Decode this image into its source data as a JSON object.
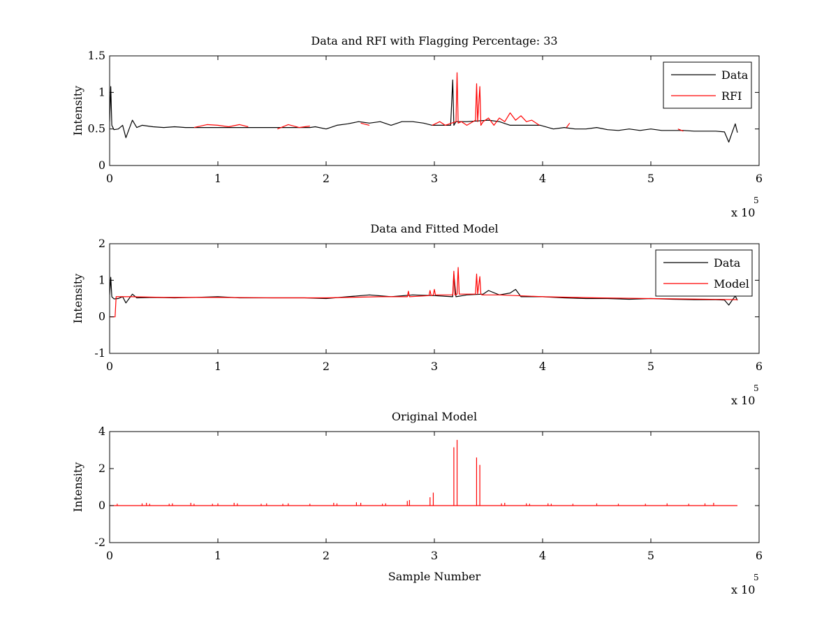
{
  "chart_data": [
    {
      "type": "line",
      "title": "Data and RFI with Flagging Percentage: 33",
      "xlabel": "",
      "ylabel": "Intensity",
      "xlim": [
        0,
        6
      ],
      "ylim": [
        0,
        1.5
      ],
      "xticks": [
        0,
        1,
        2,
        3,
        4,
        5,
        6
      ],
      "yticks": [
        0,
        0.5,
        1,
        1.5
      ],
      "x_multiplier": {
        "base": "x 10",
        "exponent": "5"
      },
      "legend": {
        "placement": "top-right",
        "entries": [
          {
            "label": "Data",
            "color": "#000000"
          },
          {
            "label": "RFI",
            "color": "#ff0000"
          }
        ]
      },
      "series": [
        {
          "name": "Data",
          "color": "#000000",
          "x": [
            0,
            0.01,
            0.02,
            0.04,
            0.08,
            0.12,
            0.15,
            0.18,
            0.21,
            0.25,
            0.3,
            0.4,
            0.5,
            0.6,
            0.7,
            0.75,
            1.3,
            1.5,
            1.85,
            1.9,
            2.0,
            2.1,
            2.2,
            2.3,
            2.4,
            2.5,
            2.6,
            2.7,
            2.8,
            2.9,
            2.98,
            3.15,
            3.17,
            3.18,
            3.2,
            3.3,
            3.5,
            3.6,
            3.7,
            3.98,
            4.1,
            4.2,
            4.3,
            4.4,
            4.5,
            4.6,
            4.7,
            4.8,
            4.9,
            5.0,
            5.1,
            5.2,
            5.3,
            5.4,
            5.5,
            5.6,
            5.68,
            5.72,
            5.75,
            5.78,
            5.8
          ],
          "y": [
            0.6,
            1.08,
            0.55,
            0.49,
            0.5,
            0.55,
            0.38,
            0.5,
            0.62,
            0.52,
            0.55,
            0.53,
            0.52,
            0.53,
            0.52,
            0.52,
            0.52,
            0.52,
            0.52,
            0.53,
            0.5,
            0.55,
            0.57,
            0.6,
            0.58,
            0.6,
            0.55,
            0.6,
            0.6,
            0.58,
            0.55,
            0.55,
            1.17,
            0.55,
            0.6,
            0.6,
            0.62,
            0.6,
            0.55,
            0.55,
            0.5,
            0.52,
            0.5,
            0.5,
            0.52,
            0.49,
            0.48,
            0.5,
            0.48,
            0.5,
            0.48,
            0.48,
            0.48,
            0.47,
            0.47,
            0.47,
            0.46,
            0.32,
            0.45,
            0.57,
            0.45
          ]
        },
        {
          "name": "RFI",
          "color": "#ff0000",
          "segments": [
            {
              "x": [
                0.78,
                0.9,
                1.0,
                1.1,
                1.2,
                1.28
              ],
              "y": [
                0.52,
                0.56,
                0.55,
                0.53,
                0.56,
                0.53
              ]
            },
            {
              "x": [
                1.55,
                1.65,
                1.75,
                1.85
              ],
              "y": [
                0.5,
                0.56,
                0.52,
                0.54
              ]
            },
            {
              "x": [
                2.32,
                2.4
              ],
              "y": [
                0.58,
                0.55
              ]
            },
            {
              "x": [
                2.98,
                3.05,
                3.1,
                3.2,
                3.21,
                3.22,
                3.25,
                3.3,
                3.38,
                3.39,
                3.4,
                3.42,
                3.43,
                3.45,
                3.5,
                3.55,
                3.6,
                3.65,
                3.7,
                3.75,
                3.8,
                3.85,
                3.9,
                3.97
              ],
              "y": [
                0.55,
                0.6,
                0.55,
                0.6,
                1.27,
                0.58,
                0.6,
                0.55,
                0.62,
                1.12,
                0.6,
                1.08,
                0.55,
                0.6,
                0.65,
                0.55,
                0.65,
                0.6,
                0.72,
                0.62,
                0.68,
                0.6,
                0.62,
                0.55
              ]
            },
            {
              "x": [
                4.22,
                4.25
              ],
              "y": [
                0.52,
                0.58
              ]
            },
            {
              "x": [
                5.25,
                5.3
              ],
              "y": [
                0.5,
                0.47
              ]
            }
          ]
        }
      ]
    },
    {
      "type": "line",
      "title": "Data and Fitted Model",
      "xlabel": "",
      "ylabel": "Intensity",
      "xlim": [
        0,
        6
      ],
      "ylim": [
        -1,
        2
      ],
      "xticks": [
        0,
        1,
        2,
        3,
        4,
        5,
        6
      ],
      "yticks": [
        -1,
        0,
        1,
        2
      ],
      "x_multiplier": {
        "base": "x 10",
        "exponent": "5"
      },
      "legend": {
        "placement": "top-right",
        "entries": [
          {
            "label": "Data",
            "color": "#000000"
          },
          {
            "label": "Model",
            "color": "#ff0000"
          }
        ]
      },
      "series": [
        {
          "name": "Data",
          "color": "#000000",
          "x": [
            0,
            0.01,
            0.02,
            0.04,
            0.08,
            0.12,
            0.15,
            0.18,
            0.21,
            0.25,
            0.4,
            0.6,
            0.8,
            1.0,
            1.2,
            1.4,
            1.6,
            1.8,
            2.0,
            2.2,
            2.4,
            2.6,
            2.8,
            3.0,
            3.17,
            3.18,
            3.2,
            3.3,
            3.45,
            3.5,
            3.6,
            3.7,
            3.75,
            3.8,
            4.0,
            4.2,
            4.4,
            4.6,
            4.8,
            5.0,
            5.2,
            5.4,
            5.6,
            5.68,
            5.72,
            5.75,
            5.78,
            5.8
          ],
          "y": [
            0.6,
            1.08,
            0.55,
            0.49,
            0.5,
            0.55,
            0.38,
            0.5,
            0.62,
            0.52,
            0.53,
            0.52,
            0.53,
            0.55,
            0.52,
            0.52,
            0.52,
            0.52,
            0.5,
            0.55,
            0.6,
            0.55,
            0.6,
            0.58,
            0.55,
            1.17,
            0.55,
            0.6,
            0.62,
            0.72,
            0.6,
            0.65,
            0.75,
            0.55,
            0.55,
            0.52,
            0.5,
            0.5,
            0.48,
            0.5,
            0.48,
            0.47,
            0.47,
            0.46,
            0.32,
            0.45,
            0.57,
            0.45
          ]
        },
        {
          "name": "Model",
          "color": "#ff0000",
          "x": [
            0,
            0.05,
            0.06,
            0.2,
            0.5,
            1.0,
            1.5,
            2.0,
            2.5,
            2.75,
            2.76,
            2.77,
            2.95,
            2.96,
            2.97,
            2.99,
            3.0,
            3.01,
            3.17,
            3.18,
            3.19,
            3.21,
            3.22,
            3.23,
            3.38,
            3.39,
            3.4,
            3.42,
            3.43,
            3.44,
            3.6,
            4.0,
            4.5,
            5.0,
            5.5,
            5.8
          ],
          "y": [
            0,
            0,
            0.55,
            0.55,
            0.53,
            0.53,
            0.52,
            0.52,
            0.55,
            0.55,
            0.7,
            0.55,
            0.58,
            0.72,
            0.58,
            0.6,
            0.75,
            0.6,
            0.6,
            1.25,
            0.6,
            0.62,
            1.35,
            0.62,
            0.62,
            1.17,
            0.62,
            1.1,
            0.62,
            0.6,
            0.6,
            0.55,
            0.52,
            0.5,
            0.48,
            0.47
          ]
        }
      ]
    },
    {
      "type": "line",
      "title": "Original Model",
      "xlabel": "Sample Number",
      "ylabel": "Intensity",
      "xlim": [
        0,
        6
      ],
      "ylim": [
        -2,
        4
      ],
      "xticks": [
        0,
        1,
        2,
        3,
        4,
        5,
        6
      ],
      "yticks": [
        -2,
        0,
        2,
        4
      ],
      "x_multiplier": {
        "base": "x 10",
        "exponent": "5"
      },
      "series": [
        {
          "name": "",
          "color": "#ff0000",
          "baseline_y": 0,
          "x_range": [
            0,
            5.8
          ],
          "spikes": [
            [
              0.07,
              0.1
            ],
            [
              0.3,
              0.12
            ],
            [
              0.34,
              0.15
            ],
            [
              0.37,
              0.1
            ],
            [
              0.55,
              0.1
            ],
            [
              0.58,
              0.12
            ],
            [
              0.75,
              0.15
            ],
            [
              0.78,
              0.1
            ],
            [
              0.95,
              0.1
            ],
            [
              1.0,
              0.12
            ],
            [
              1.15,
              0.15
            ],
            [
              1.18,
              0.12
            ],
            [
              1.4,
              0.1
            ],
            [
              1.45,
              0.12
            ],
            [
              1.6,
              0.1
            ],
            [
              1.65,
              0.12
            ],
            [
              1.85,
              0.1
            ],
            [
              2.07,
              0.15
            ],
            [
              2.1,
              0.12
            ],
            [
              2.28,
              0.18
            ],
            [
              2.32,
              0.15
            ],
            [
              2.52,
              0.1
            ],
            [
              2.55,
              0.12
            ],
            [
              2.75,
              0.25
            ],
            [
              2.77,
              0.3
            ],
            [
              2.96,
              0.45
            ],
            [
              2.99,
              0.7
            ],
            [
              3.18,
              3.15
            ],
            [
              3.21,
              3.55
            ],
            [
              3.39,
              2.6
            ],
            [
              3.42,
              2.2
            ],
            [
              3.62,
              0.12
            ],
            [
              3.65,
              0.15
            ],
            [
              3.85,
              0.12
            ],
            [
              3.88,
              0.1
            ],
            [
              4.05,
              0.12
            ],
            [
              4.08,
              0.1
            ],
            [
              4.28,
              0.1
            ],
            [
              4.5,
              0.12
            ],
            [
              4.7,
              0.1
            ],
            [
              4.95,
              0.1
            ],
            [
              5.15,
              0.12
            ],
            [
              5.35,
              0.1
            ],
            [
              5.5,
              0.12
            ],
            [
              5.58,
              0.15
            ]
          ]
        }
      ]
    }
  ]
}
